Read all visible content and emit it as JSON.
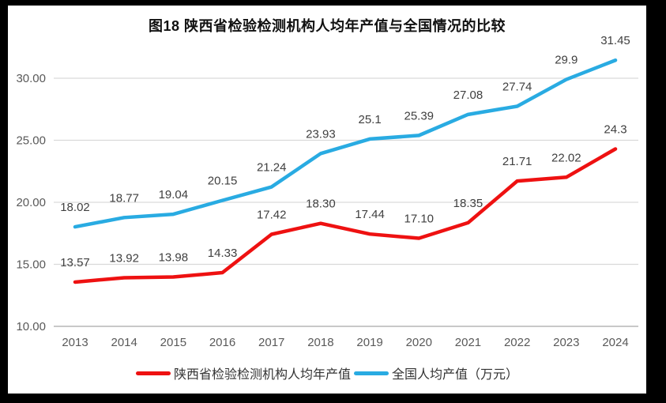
{
  "title": "图18 陕西省检验检测机构人均年产值与全国情况的比较",
  "colors": {
    "shaanxi_red": "#ee1111",
    "national_blue": "#29abe2",
    "gridline": "#d9d9d9",
    "axis_line": "#a6a6a6",
    "data_label": "#404040",
    "tick_label": "#595959",
    "frame_border": "#000000"
  },
  "chart_data": {
    "type": "line",
    "title": "图18 陕西省检验检测机构人均年产值与全国情况的比较",
    "categories": [
      "2013",
      "2014",
      "2015",
      "2016",
      "2017",
      "2018",
      "2019",
      "2020",
      "2021",
      "2022",
      "2023",
      "2024"
    ],
    "series": [
      {
        "name": "陕西省检验检测机构人均年产值",
        "color": "#ee1111",
        "values": [
          13.57,
          13.92,
          13.98,
          14.33,
          17.42,
          18.3,
          17.44,
          17.1,
          18.35,
          21.71,
          22.02,
          24.3
        ],
        "labels": [
          "13.57",
          "13.92",
          "13.98",
          "14.33",
          "17.42",
          "18.30",
          "17.44",
          "17.10",
          "18.35",
          "21.71",
          "22.02",
          "24.3"
        ]
      },
      {
        "name": "全国人均产值（万元）",
        "color": "#29abe2",
        "values": [
          18.02,
          18.77,
          19.04,
          20.15,
          21.24,
          23.93,
          25.1,
          25.39,
          27.08,
          27.74,
          29.9,
          31.45
        ],
        "labels": [
          "18.02",
          "18.77",
          "19.04",
          "20.15",
          "21.24",
          "23.93",
          "25.1",
          "25.39",
          "27.08",
          "27.74",
          "29.9",
          "31.45"
        ]
      }
    ],
    "yticks": [
      {
        "value": 10,
        "label": "10.00"
      },
      {
        "value": 15,
        "label": "15.00"
      },
      {
        "value": 20,
        "label": "20.00"
      },
      {
        "value": 25,
        "label": "25.00"
      },
      {
        "value": 30,
        "label": "30.00"
      }
    ],
    "ylim": [
      10,
      32
    ],
    "grid": true,
    "legend_position": "bottom"
  }
}
